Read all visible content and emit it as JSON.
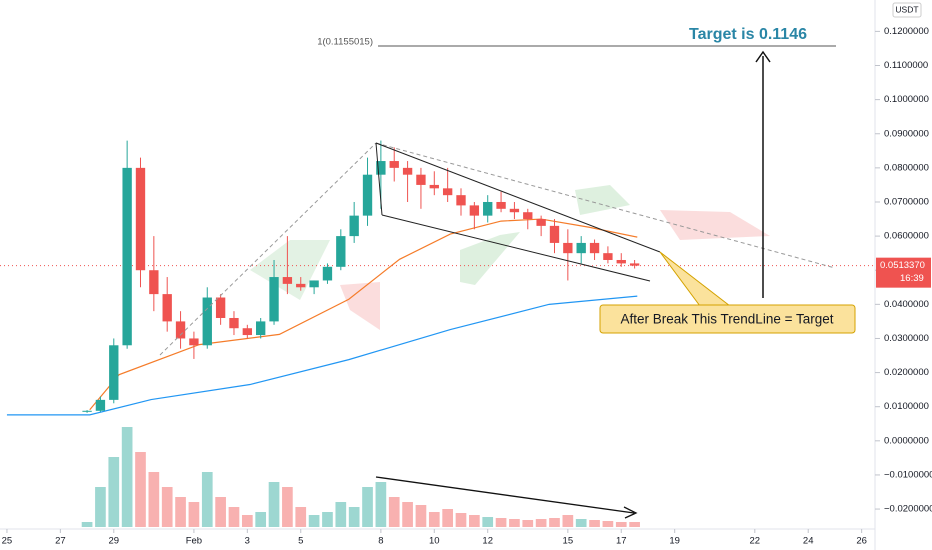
{
  "chart_data": {
    "type": "candlestick",
    "currency": "USDT",
    "fib_label": "1(0.1155015)",
    "target_label": "Target is 0.1146",
    "callout": "After Break This TrendLine = Target",
    "countdown": "16:39",
    "current_price": {
      "value": 0.051337,
      "label": "0.0513370"
    },
    "up_color": "#26a69a",
    "down_color": "#ef5350",
    "grid": false,
    "xlim": [
      -0.26,
      32.5
    ],
    "ylim": [
      -0.032,
      0.1292
    ],
    "xticks": [
      {
        "value": 0,
        "label": "25"
      },
      {
        "value": 2,
        "label": "27"
      },
      {
        "value": 4,
        "label": "29"
      },
      {
        "value": 7,
        "label": "Feb"
      },
      {
        "value": 9,
        "label": "3"
      },
      {
        "value": 11,
        "label": "5"
      },
      {
        "value": 14,
        "label": "8"
      },
      {
        "value": 16,
        "label": "10"
      },
      {
        "value": 18,
        "label": "12"
      },
      {
        "value": 21,
        "label": "15"
      },
      {
        "value": 23,
        "label": "17"
      },
      {
        "value": 25,
        "label": "19"
      },
      {
        "value": 28,
        "label": "22"
      },
      {
        "value": 30,
        "label": "24"
      },
      {
        "value": 32,
        "label": "26"
      }
    ],
    "yticks": [
      {
        "value": 0.12,
        "label": "0.1200000"
      },
      {
        "value": 0.11,
        "label": "0.1100000"
      },
      {
        "value": 0.1,
        "label": "0.1000000"
      },
      {
        "value": 0.09,
        "label": "0.0900000"
      },
      {
        "value": 0.08,
        "label": "0.0800000"
      },
      {
        "value": 0.07,
        "label": "0.0700000"
      },
      {
        "value": 0.06,
        "label": "0.0600000"
      },
      {
        "value": 0.05,
        "label": "0.0500000"
      },
      {
        "value": 0.04,
        "label": "0.0400000"
      },
      {
        "value": 0.03,
        "label": "0.0300000"
      },
      {
        "value": 0.02,
        "label": "0.0200000"
      },
      {
        "value": 0.01,
        "label": "0.0100000"
      },
      {
        "value": 0,
        "label": "0.0000000"
      },
      {
        "value": -0.01,
        "label": "−0.0100000"
      },
      {
        "value": -0.02,
        "label": "−0.0200000"
      }
    ],
    "candles": {
      "x": [
        3,
        3.5,
        4,
        4.5,
        5,
        5.5,
        6,
        6.5,
        7,
        7.5,
        8,
        8.5,
        9,
        9.5,
        10,
        10.5,
        11,
        11.5,
        12,
        12.5,
        13,
        13.5,
        14,
        14.5,
        15,
        15.5,
        16,
        16.5,
        17,
        17.5,
        18,
        18.5,
        19,
        19.5,
        20,
        20.5,
        21,
        21.5,
        22,
        22.5,
        23,
        23.5
      ],
      "open": [
        0.0085,
        0.0088,
        0.012,
        0.028,
        0.08,
        0.05,
        0.043,
        0.035,
        0.03,
        0.028,
        0.042,
        0.036,
        0.033,
        0.031,
        0.035,
        0.048,
        0.046,
        0.045,
        0.047,
        0.051,
        0.06,
        0.066,
        0.078,
        0.082,
        0.08,
        0.078,
        0.075,
        0.074,
        0.072,
        0.069,
        0.066,
        0.07,
        0.068,
        0.067,
        0.065,
        0.063,
        0.058,
        0.055,
        0.058,
        0.055,
        0.053,
        0.052
      ],
      "high": [
        0.009,
        0.013,
        0.03,
        0.088,
        0.083,
        0.06,
        0.048,
        0.038,
        0.032,
        0.045,
        0.043,
        0.038,
        0.034,
        0.036,
        0.053,
        0.06,
        0.048,
        0.047,
        0.052,
        0.062,
        0.07,
        0.083,
        0.088,
        0.086,
        0.082,
        0.08,
        0.079,
        0.08,
        0.074,
        0.07,
        0.072,
        0.073,
        0.07,
        0.068,
        0.066,
        0.065,
        0.062,
        0.06,
        0.059,
        0.057,
        0.055,
        0.053
      ],
      "low": [
        0.0082,
        0.0085,
        0.011,
        0.027,
        0.045,
        0.038,
        0.032,
        0.027,
        0.024,
        0.027,
        0.034,
        0.031,
        0.03,
        0.03,
        0.034,
        0.043,
        0.044,
        0.043,
        0.046,
        0.05,
        0.058,
        0.063,
        0.068,
        0.076,
        0.07,
        0.068,
        0.072,
        0.07,
        0.066,
        0.062,
        0.064,
        0.067,
        0.065,
        0.062,
        0.06,
        0.055,
        0.047,
        0.052,
        0.053,
        0.052,
        0.051,
        0.0505
      ],
      "close": [
        0.0088,
        0.012,
        0.028,
        0.08,
        0.05,
        0.043,
        0.035,
        0.03,
        0.028,
        0.042,
        0.036,
        0.033,
        0.031,
        0.035,
        0.048,
        0.046,
        0.045,
        0.047,
        0.051,
        0.06,
        0.066,
        0.078,
        0.082,
        0.08,
        0.078,
        0.075,
        0.074,
        0.072,
        0.069,
        0.066,
        0.07,
        0.068,
        0.067,
        0.065,
        0.063,
        0.058,
        0.055,
        0.058,
        0.055,
        0.053,
        0.052,
        0.051337
      ]
    },
    "volume": [
      5,
      40,
      70,
      100,
      75,
      55,
      40,
      30,
      25,
      55,
      30,
      20,
      12,
      15,
      45,
      40,
      20,
      12,
      15,
      25,
      20,
      40,
      45,
      30,
      25,
      22,
      15,
      18,
      14,
      12,
      10,
      9,
      8,
      7,
      8,
      9,
      12,
      8,
      7,
      6,
      5,
      5
    ],
    "lines": [
      {
        "color": "#f57c2a",
        "x": [
          3.1,
          4.2,
          7.2,
          10.2,
          12.8,
          14.7,
          16.6,
          18.5,
          20,
          21.8,
          23.6
        ],
        "values": [
          0.0091,
          0.0194,
          0.0282,
          0.0312,
          0.0415,
          0.0532,
          0.0606,
          0.0644,
          0.065,
          0.0626,
          0.0597
        ]
      },
      {
        "color": "#2196f3",
        "x": [
          0,
          3.1,
          5.4,
          9.1,
          12.8,
          16.6,
          20.3,
          23.6
        ],
        "values": [
          0.0076,
          0.0076,
          0.0121,
          0.0165,
          0.0238,
          0.0326,
          0.04,
          0.0424
        ]
      }
    ]
  }
}
